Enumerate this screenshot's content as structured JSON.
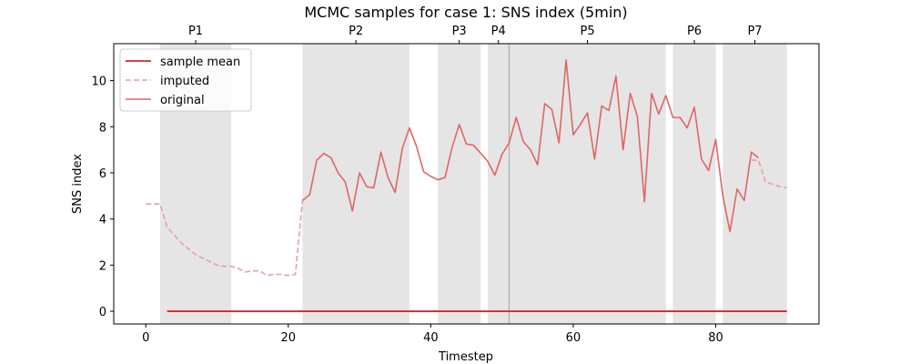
{
  "chart_data": {
    "type": "line",
    "title": "MCMC samples for case 1: SNS index (5min)",
    "xlabel": "Timestep",
    "ylabel": "SNS index",
    "xlim": [
      -4.5,
      94.5
    ],
    "ylim": [
      -0.55,
      11.6
    ],
    "xticks": [
      0,
      20,
      40,
      60,
      80
    ],
    "yticks": [
      0,
      2,
      4,
      6,
      8,
      10
    ],
    "grid": false,
    "legend_position": "top-left",
    "colors": {
      "sample_mean": "#d62728",
      "imputed": "#e8a09e",
      "original": "#e06666",
      "shade": "#e5e5e5",
      "divider": "#b0b0b0"
    },
    "periods": [
      {
        "label": "P1",
        "start": 2,
        "end": 12
      },
      {
        "label": "P2",
        "start": 22,
        "end": 37
      },
      {
        "label": "P3",
        "start": 41,
        "end": 47
      },
      {
        "label": "P4",
        "start": 48,
        "end": 51
      },
      {
        "label": "P5",
        "start": 51,
        "end": 73
      },
      {
        "label": "P6",
        "start": 74,
        "end": 80
      },
      {
        "label": "P7",
        "start": 81,
        "end": 90
      }
    ],
    "dividers": [
      51
    ],
    "series": [
      {
        "name": "sample mean",
        "style": "solid",
        "x": [
          3,
          90
        ],
        "y": [
          0,
          0
        ]
      },
      {
        "name": "imputed",
        "style": "dashed",
        "x": [
          0,
          1,
          2,
          3,
          4,
          5,
          6,
          7,
          8,
          9,
          10,
          11,
          12,
          13,
          14,
          15,
          16,
          17,
          18,
          19,
          20,
          21,
          22,
          85,
          86,
          87,
          88,
          89,
          90
        ],
        "y": [
          4.65,
          4.65,
          4.65,
          3.65,
          3.3,
          2.95,
          2.7,
          2.45,
          2.3,
          2.15,
          2.0,
          1.95,
          1.95,
          1.85,
          1.7,
          1.75,
          1.75,
          1.55,
          1.6,
          1.6,
          1.55,
          1.6,
          4.8,
          6.55,
          6.55,
          5.6,
          5.5,
          5.4,
          5.35
        ]
      },
      {
        "name": "original",
        "style": "solid",
        "x": [
          22,
          23,
          24,
          25,
          26,
          27,
          28,
          29,
          30,
          31,
          32,
          33,
          34,
          35,
          36,
          37,
          38,
          39,
          40,
          41,
          42,
          43,
          44,
          45,
          46,
          47,
          48,
          49,
          50,
          51,
          52,
          53,
          54,
          55,
          56,
          57,
          58,
          59,
          60,
          61,
          62,
          63,
          64,
          65,
          66,
          67,
          68,
          69,
          70,
          71,
          72,
          73,
          74,
          75,
          76,
          77,
          78,
          79,
          80,
          81,
          82,
          83,
          84,
          85,
          86
        ],
        "y": [
          4.8,
          5.05,
          6.55,
          6.85,
          6.65,
          6.0,
          5.6,
          4.35,
          6.0,
          5.4,
          5.35,
          6.9,
          5.8,
          5.15,
          7.05,
          7.95,
          7.15,
          6.05,
          5.85,
          5.7,
          5.8,
          7.1,
          8.1,
          7.25,
          7.2,
          6.85,
          6.5,
          5.9,
          6.8,
          7.3,
          8.4,
          7.35,
          7.0,
          6.35,
          9.0,
          8.75,
          7.3,
          10.9,
          7.65,
          8.1,
          8.6,
          6.6,
          8.9,
          8.7,
          10.2,
          7.0,
          9.45,
          8.45,
          4.75,
          9.45,
          8.55,
          9.35,
          8.4,
          8.4,
          7.95,
          8.85,
          6.6,
          6.1,
          7.45,
          5.0,
          3.45,
          5.3,
          4.8,
          6.9,
          6.65
        ]
      }
    ]
  }
}
